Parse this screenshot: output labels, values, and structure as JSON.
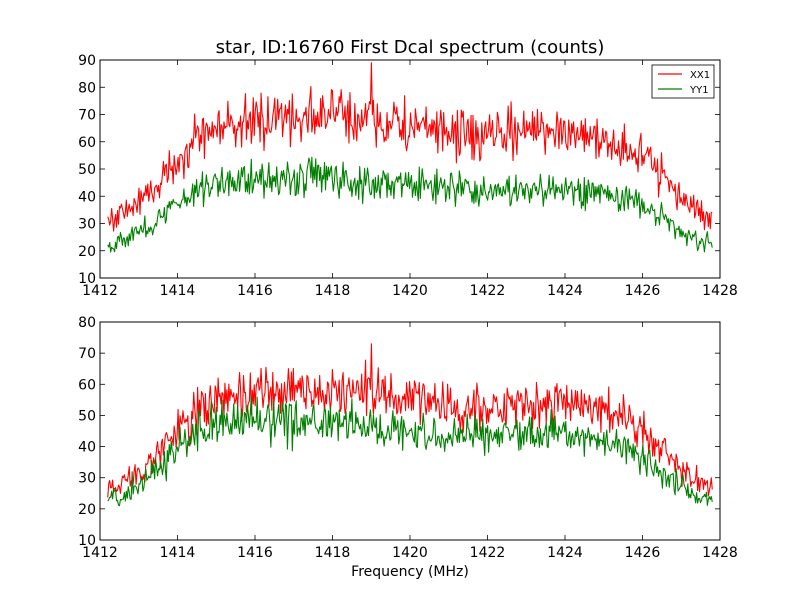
{
  "figure": {
    "title": "star, ID:16760 First Dcal spectrum (counts)",
    "xlabel": "Frequency (MHz)"
  },
  "legend": {
    "placement": "top-right",
    "entries": [
      {
        "label": "XX1",
        "color": "#ff0000"
      },
      {
        "label": "YY1",
        "color": "#008000"
      }
    ]
  },
  "chart_data": [
    {
      "type": "line",
      "title": "star, ID:16760 First Dcal spectrum (counts)",
      "xlabel": "",
      "ylabel": "",
      "xlim": [
        1412,
        1428
      ],
      "ylim": [
        10,
        90
      ],
      "xticks": [
        1412,
        1414,
        1416,
        1418,
        1420,
        1422,
        1424,
        1426,
        1428
      ],
      "yticks": [
        10,
        20,
        30,
        40,
        50,
        60,
        70,
        80,
        90
      ],
      "x_range": [
        1412.2,
        1427.8
      ],
      "legend": "top-right",
      "series": [
        {
          "name": "XX1",
          "color": "#ff0000",
          "x": [
            1412.2,
            1412.6,
            1413.0,
            1413.4,
            1413.8,
            1414.2,
            1414.6,
            1415.0,
            1415.4,
            1415.8,
            1416.2,
            1416.6,
            1417.0,
            1417.4,
            1417.8,
            1418.2,
            1418.6,
            1419.0,
            1419.4,
            1419.8,
            1420.2,
            1420.6,
            1421.0,
            1421.4,
            1421.8,
            1422.2,
            1422.6,
            1423.0,
            1423.4,
            1423.8,
            1424.2,
            1424.6,
            1425.0,
            1425.4,
            1425.8,
            1426.2,
            1426.6,
            1427.0,
            1427.4,
            1427.8
          ],
          "y": [
            31,
            34,
            38,
            43,
            50,
            57,
            62,
            65,
            66,
            67,
            68,
            69,
            69,
            70,
            70,
            70,
            69,
            68,
            67,
            66,
            65,
            64,
            63,
            62,
            62,
            62,
            63,
            64,
            65,
            65,
            64,
            62,
            61,
            59,
            56,
            52,
            46,
            40,
            35,
            32
          ],
          "peak": {
            "x": 1419.0,
            "y": 89
          }
        },
        {
          "name": "YY1",
          "color": "#008000",
          "x": [
            1412.2,
            1412.6,
            1413.0,
            1413.4,
            1413.8,
            1414.2,
            1414.6,
            1415.0,
            1415.4,
            1415.8,
            1416.2,
            1416.6,
            1417.0,
            1417.4,
            1417.8,
            1418.2,
            1418.6,
            1419.0,
            1419.4,
            1419.8,
            1420.2,
            1420.6,
            1421.0,
            1421.4,
            1421.8,
            1422.2,
            1422.6,
            1423.0,
            1423.4,
            1423.8,
            1424.2,
            1424.6,
            1425.0,
            1425.4,
            1425.8,
            1426.2,
            1426.6,
            1427.0,
            1427.4,
            1427.8
          ],
          "y": [
            22,
            24,
            27,
            30,
            35,
            40,
            43,
            45,
            46,
            46,
            47,
            47,
            47,
            47,
            47,
            46,
            46,
            45,
            45,
            44,
            44,
            43,
            43,
            43,
            42,
            42,
            42,
            42,
            42,
            42,
            42,
            42,
            41,
            40,
            38,
            35,
            31,
            27,
            24,
            22
          ]
        }
      ]
    },
    {
      "type": "line",
      "title": "",
      "xlabel": "Frequency (MHz)",
      "ylabel": "",
      "xlim": [
        1412,
        1428
      ],
      "ylim": [
        10,
        80
      ],
      "xticks": [
        1412,
        1414,
        1416,
        1418,
        1420,
        1422,
        1424,
        1426,
        1428
      ],
      "yticks": [
        10,
        20,
        30,
        40,
        50,
        60,
        70,
        80
      ],
      "x_range": [
        1412.2,
        1427.8
      ],
      "series": [
        {
          "name": "XX1",
          "color": "#ff0000",
          "x": [
            1412.2,
            1412.6,
            1413.0,
            1413.4,
            1413.8,
            1414.2,
            1414.6,
            1415.0,
            1415.4,
            1415.8,
            1416.2,
            1416.6,
            1417.0,
            1417.4,
            1417.8,
            1418.2,
            1418.6,
            1419.0,
            1419.4,
            1419.8,
            1420.2,
            1420.6,
            1421.0,
            1421.4,
            1421.8,
            1422.2,
            1422.6,
            1423.0,
            1423.4,
            1423.8,
            1424.2,
            1424.6,
            1425.0,
            1425.4,
            1425.8,
            1426.2,
            1426.6,
            1427.0,
            1427.4,
            1427.8
          ],
          "y": [
            27,
            29,
            32,
            36,
            42,
            48,
            52,
            54,
            55,
            56,
            57,
            57,
            58,
            58,
            58,
            58,
            57,
            57,
            56,
            55,
            54,
            53,
            53,
            52,
            52,
            52,
            53,
            53,
            54,
            54,
            54,
            53,
            52,
            50,
            47,
            43,
            38,
            33,
            29,
            27
          ],
          "peak": {
            "x": 1419.0,
            "y": 73
          }
        },
        {
          "name": "YY1",
          "color": "#008000",
          "x": [
            1412.2,
            1412.6,
            1413.0,
            1413.4,
            1413.8,
            1414.2,
            1414.6,
            1415.0,
            1415.4,
            1415.8,
            1416.2,
            1416.6,
            1417.0,
            1417.4,
            1417.8,
            1418.2,
            1418.6,
            1419.0,
            1419.4,
            1419.8,
            1420.2,
            1420.6,
            1421.0,
            1421.4,
            1421.8,
            1422.2,
            1422.6,
            1423.0,
            1423.4,
            1423.8,
            1424.2,
            1424.6,
            1425.0,
            1425.4,
            1425.8,
            1426.2,
            1426.6,
            1427.0,
            1427.4,
            1427.8
          ],
          "y": [
            23,
            25,
            28,
            32,
            37,
            42,
            45,
            47,
            47,
            48,
            48,
            48,
            48,
            48,
            47,
            47,
            47,
            46,
            46,
            45,
            45,
            45,
            44,
            44,
            44,
            44,
            44,
            44,
            44,
            44,
            44,
            43,
            42,
            40,
            38,
            35,
            31,
            27,
            24,
            22
          ]
        }
      ]
    }
  ]
}
